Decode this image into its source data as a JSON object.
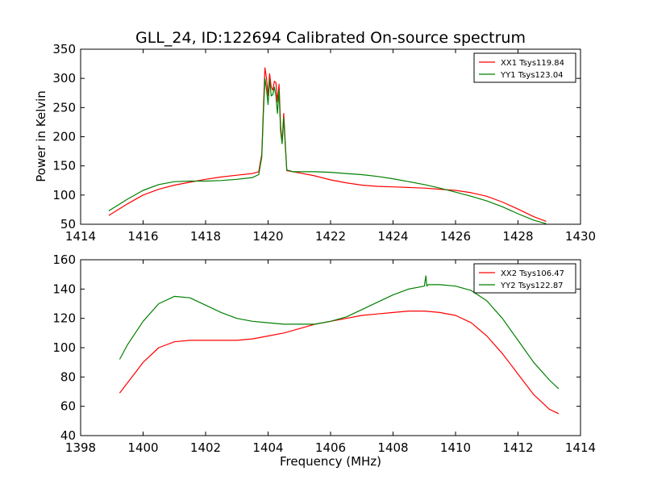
{
  "chart_data": [
    {
      "type": "line",
      "title": "GLL_24, ID:122694 Calibrated On-source spectrum",
      "xlabel": "",
      "ylabel": "Power in Kelvin",
      "xlim": [
        1414,
        1430
      ],
      "ylim": [
        50,
        350
      ],
      "xticks": [
        1414,
        1416,
        1418,
        1420,
        1422,
        1424,
        1426,
        1428,
        1430
      ],
      "yticks": [
        50,
        100,
        150,
        200,
        250,
        300,
        350
      ],
      "grid": false,
      "legend": "top-right",
      "series": [
        {
          "name": "XX1 Tsys119.84",
          "color": "#ff0000",
          "x": [
            1414.9,
            1415.5,
            1416.0,
            1416.5,
            1417.0,
            1417.5,
            1418.0,
            1418.5,
            1419.0,
            1419.5,
            1419.7,
            1419.8,
            1419.85,
            1419.9,
            1419.95,
            1420.0,
            1420.05,
            1420.1,
            1420.15,
            1420.2,
            1420.25,
            1420.3,
            1420.35,
            1420.4,
            1420.45,
            1420.5,
            1420.55,
            1420.6,
            1420.8,
            1421.0,
            1421.5,
            1422.0,
            1422.5,
            1423.0,
            1423.5,
            1424.0,
            1424.5,
            1425.0,
            1425.5,
            1426.0,
            1426.5,
            1427.0,
            1427.5,
            1428.0,
            1428.5,
            1428.9
          ],
          "y": [
            65,
            85,
            100,
            110,
            117,
            122,
            127,
            131,
            134,
            137,
            140,
            170,
            250,
            318,
            300,
            270,
            308,
            285,
            280,
            295,
            293,
            260,
            290,
            220,
            190,
            240,
            190,
            142,
            140,
            138,
            133,
            126,
            121,
            117,
            115,
            114,
            113,
            112,
            110,
            108,
            104,
            98,
            88,
            76,
            63,
            55
          ]
        },
        {
          "name": "YY1 Tsys123.04",
          "color": "#008000",
          "x": [
            1414.9,
            1415.5,
            1416.0,
            1416.5,
            1417.0,
            1417.5,
            1418.0,
            1418.5,
            1419.0,
            1419.5,
            1419.7,
            1419.8,
            1419.85,
            1419.9,
            1419.95,
            1420.0,
            1420.05,
            1420.1,
            1420.15,
            1420.2,
            1420.25,
            1420.3,
            1420.35,
            1420.4,
            1420.45,
            1420.5,
            1420.55,
            1420.6,
            1420.8,
            1421.0,
            1421.5,
            1422.0,
            1422.5,
            1423.0,
            1423.5,
            1424.0,
            1424.5,
            1425.0,
            1425.5,
            1426.0,
            1426.5,
            1427.0,
            1427.5,
            1428.0,
            1428.5,
            1428.9
          ],
          "y": [
            73,
            93,
            108,
            118,
            123,
            124,
            124,
            125,
            127,
            130,
            135,
            165,
            240,
            300,
            280,
            255,
            298,
            270,
            272,
            285,
            270,
            240,
            280,
            210,
            188,
            232,
            185,
            143,
            140,
            140,
            140,
            139,
            137,
            135,
            132,
            128,
            123,
            118,
            112,
            105,
            98,
            90,
            80,
            68,
            57,
            51
          ]
        }
      ]
    },
    {
      "type": "line",
      "title": "",
      "xlabel": "Frequency (MHz)",
      "ylabel": "",
      "xlim": [
        1398,
        1414
      ],
      "ylim": [
        40,
        160
      ],
      "xticks": [
        1398,
        1400,
        1402,
        1404,
        1406,
        1408,
        1410,
        1412,
        1414
      ],
      "yticks": [
        40,
        60,
        80,
        100,
        120,
        140,
        160
      ],
      "grid": false,
      "legend": "top-right",
      "series": [
        {
          "name": "XX2 Tsys106.47",
          "color": "#ff0000",
          "x": [
            1399.25,
            1399.5,
            1400.0,
            1400.5,
            1401.0,
            1401.5,
            1402.0,
            1402.5,
            1403.0,
            1403.5,
            1404.0,
            1404.5,
            1405.0,
            1405.5,
            1406.0,
            1406.5,
            1407.0,
            1407.5,
            1408.0,
            1408.5,
            1409.0,
            1409.5,
            1410.0,
            1410.5,
            1411.0,
            1411.5,
            1412.0,
            1412.5,
            1413.0,
            1413.3
          ],
          "y": [
            69,
            76,
            90,
            100,
            104,
            105,
            105,
            105,
            105,
            106,
            108,
            110,
            113,
            116,
            118,
            120,
            122,
            123,
            124,
            125,
            125,
            124,
            122,
            117,
            108,
            96,
            82,
            68,
            58,
            55
          ]
        },
        {
          "name": "YY2 Tsys122.87",
          "color": "#008000",
          "x": [
            1399.25,
            1399.5,
            1400.0,
            1400.5,
            1401.0,
            1401.5,
            1402.0,
            1402.5,
            1403.0,
            1403.5,
            1404.0,
            1404.5,
            1405.0,
            1405.5,
            1406.0,
            1406.5,
            1407.0,
            1407.5,
            1408.0,
            1408.5,
            1409.0,
            1409.05,
            1409.08,
            1409.12,
            1409.5,
            1410.0,
            1410.5,
            1411.0,
            1411.5,
            1412.0,
            1412.5,
            1413.0,
            1413.3
          ],
          "y": [
            92,
            102,
            118,
            130,
            135,
            134,
            129,
            124,
            120,
            118,
            117,
            116,
            116,
            116,
            118,
            121,
            126,
            131,
            136,
            140,
            142,
            149,
            142,
            143,
            143,
            142,
            139,
            132,
            120,
            105,
            90,
            78,
            72
          ]
        }
      ]
    }
  ]
}
